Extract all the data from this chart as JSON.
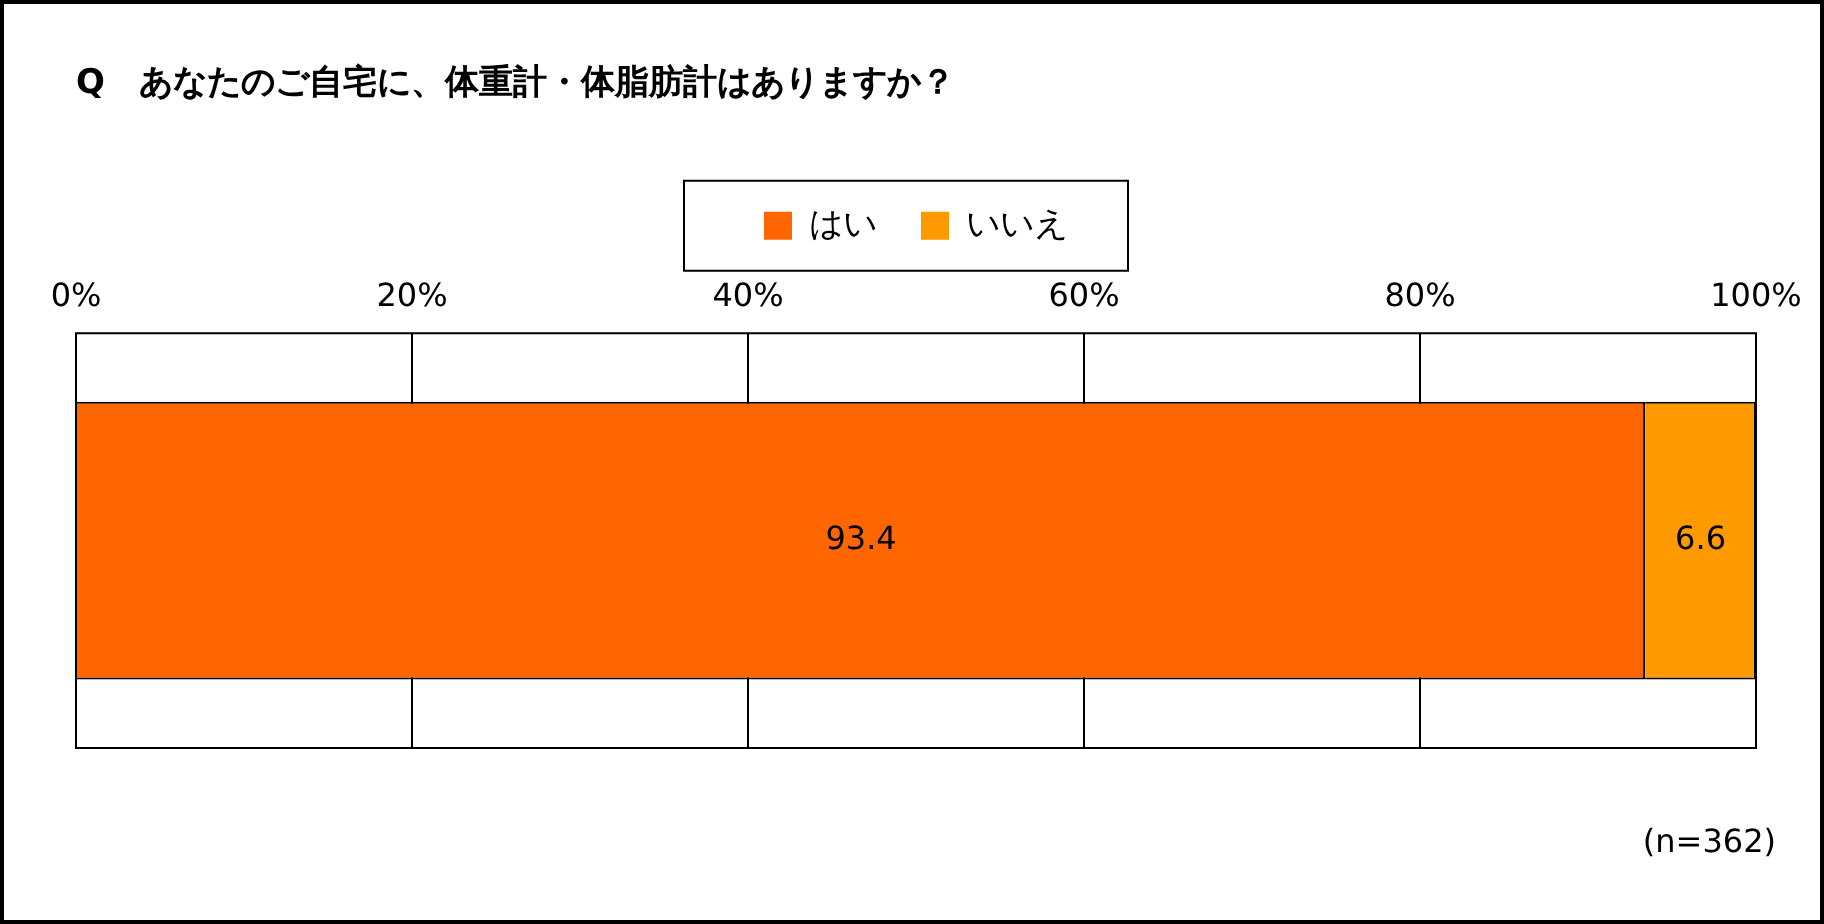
{
  "chart_data": {
    "type": "bar",
    "orientation": "horizontal",
    "stacked": true,
    "title": "Q　あなたのご自宅に、体重計・体脂肪計はありますか？",
    "categories": [
      null
    ],
    "series": [
      {
        "name": "はい",
        "color": "#ff6600",
        "values": [
          93.4
        ]
      },
      {
        "name": "いいえ",
        "color": "#ff9900",
        "values": [
          6.6
        ]
      }
    ],
    "xlim": [
      0,
      100
    ],
    "xticks": [
      {
        "value": 0,
        "label": "0%"
      },
      {
        "value": 20,
        "label": "20%"
      },
      {
        "value": 40,
        "label": "40%"
      },
      {
        "value": 60,
        "label": "60%"
      },
      {
        "value": 80,
        "label": "80%"
      },
      {
        "value": 100,
        "label": "100%"
      }
    ],
    "grid": "x",
    "legend": "top",
    "data_labels": true,
    "annotations": [
      "(n=362)"
    ]
  }
}
